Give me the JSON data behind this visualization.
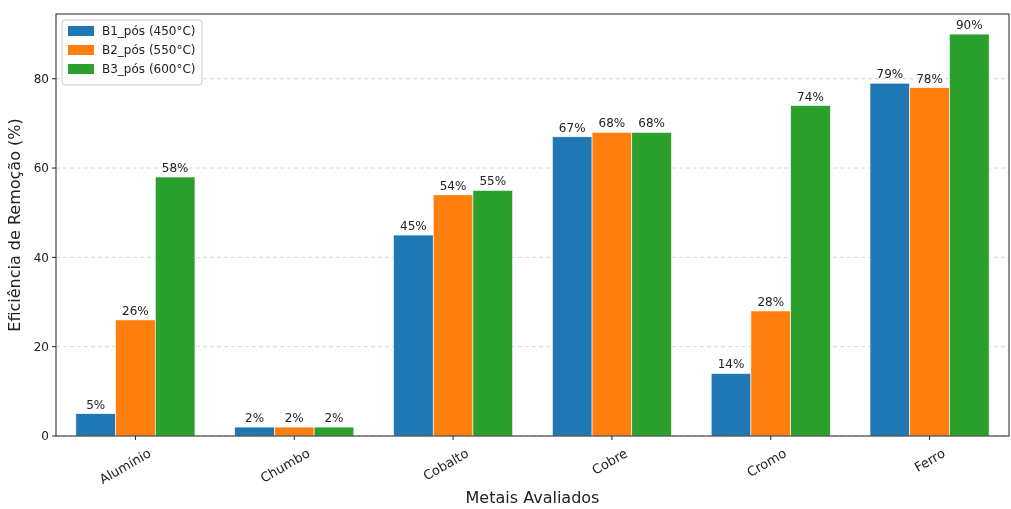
{
  "chart_data": {
    "type": "bar",
    "xlabel": "Metais Avaliados",
    "ylabel": "Eficiência de Remoção (%)",
    "categories": [
      "Alumínio",
      "Chumbo",
      "Cobalto",
      "Cobre",
      "Cromo",
      "Ferro"
    ],
    "series": [
      {
        "name": "B1_pós (450°C)",
        "color": "#1f77b4",
        "values": [
          5,
          2,
          45,
          67,
          14,
          79
        ],
        "value_labels": [
          "5%",
          "2%",
          "45%",
          "67%",
          "14%",
          "79%"
        ]
      },
      {
        "name": "B2_pós (550°C)",
        "color": "#ff7f0e",
        "values": [
          26,
          2,
          54,
          68,
          28,
          78
        ],
        "value_labels": [
          "26%",
          "2%",
          "54%",
          "68%",
          "28%",
          "78%"
        ]
      },
      {
        "name": "B3_pós (600°C)",
        "color": "#2ca02c",
        "values": [
          58,
          2,
          55,
          68,
          74,
          90
        ],
        "value_labels": [
          "58%",
          "2%",
          "55%",
          "68%",
          "74%",
          "90%"
        ]
      }
    ],
    "ylim": [
      0,
      94.5
    ],
    "yticks": [
      0,
      20,
      40,
      60,
      80
    ],
    "grid": "y",
    "legend": "top left"
  }
}
